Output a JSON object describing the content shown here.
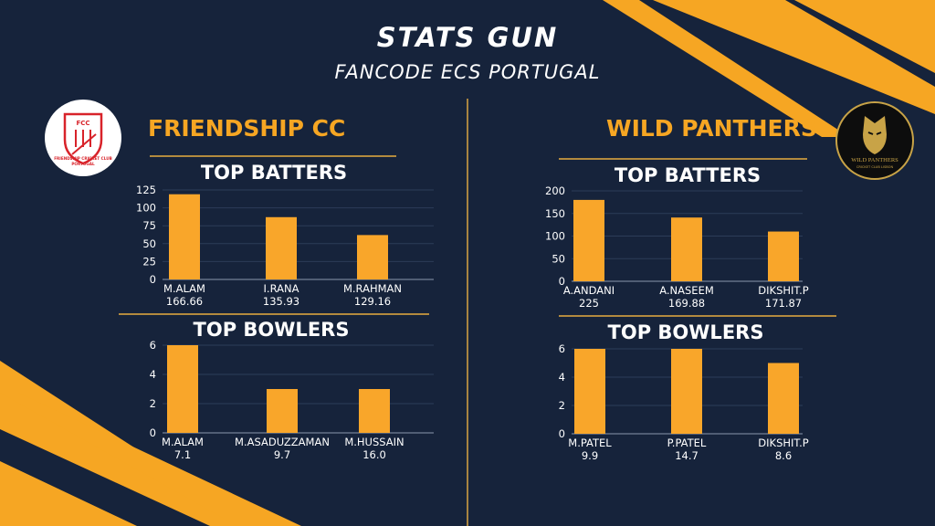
{
  "header": {
    "title": "STATS GUN",
    "subtitle": "FANCODE ECS PORTUGAL"
  },
  "teams": {
    "left": {
      "name": "FRIENDSHIP CC",
      "logo_text": "FRIENDSHIP CRICKET CLUB PORTUGAL",
      "logo_mark": "FCC"
    },
    "right": {
      "name": "WILD PANTHERS",
      "logo_text": "WILD PANTHERS",
      "logo_sub": "CRICKET CLUB LISBON"
    }
  },
  "colors": {
    "background": "#16233b",
    "accent": "#f6a623",
    "bar": "#f9a62a",
    "rule": "#b38a3e"
  },
  "chart_data": [
    {
      "id": "left-batters",
      "type": "bar",
      "title": "TOP BATTERS",
      "categories": [
        "M.ALAM",
        "I.RANA",
        "M.RAHMAN"
      ],
      "values": [
        119,
        87,
        62
      ],
      "data_labels": [
        "166.66",
        "135.93",
        "129.16"
      ],
      "ylim": [
        0,
        125
      ],
      "yticks": [
        0,
        25,
        50,
        75,
        100,
        125
      ]
    },
    {
      "id": "left-bowlers",
      "type": "bar",
      "title": "TOP BOWLERS",
      "categories": [
        "M.ALAM",
        "M.ASADUZZAMAN",
        "M.HUSSAIN"
      ],
      "values": [
        6,
        3,
        3
      ],
      "data_labels": [
        "7.1",
        "9.7",
        "16.0"
      ],
      "ylim": [
        0,
        6
      ],
      "yticks": [
        0,
        2,
        4,
        6
      ]
    },
    {
      "id": "right-batters",
      "type": "bar",
      "title": "TOP BATTERS",
      "categories": [
        "A.ANDANI",
        "A.NASEEM",
        "DIKSHIT.P"
      ],
      "values": [
        180,
        141,
        110
      ],
      "data_labels": [
        "225",
        "169.88",
        "171.87"
      ],
      "ylim": [
        0,
        200
      ],
      "yticks": [
        0,
        50,
        100,
        150,
        200
      ]
    },
    {
      "id": "right-bowlers",
      "type": "bar",
      "title": "TOP BOWLERS",
      "categories": [
        "M.PATEL",
        "P.PATEL",
        "DIKSHIT.P"
      ],
      "values": [
        6,
        6,
        5
      ],
      "data_labels": [
        "9.9",
        "14.7",
        "8.6"
      ],
      "ylim": [
        0,
        6
      ],
      "yticks": [
        0,
        2,
        4,
        6
      ]
    }
  ]
}
